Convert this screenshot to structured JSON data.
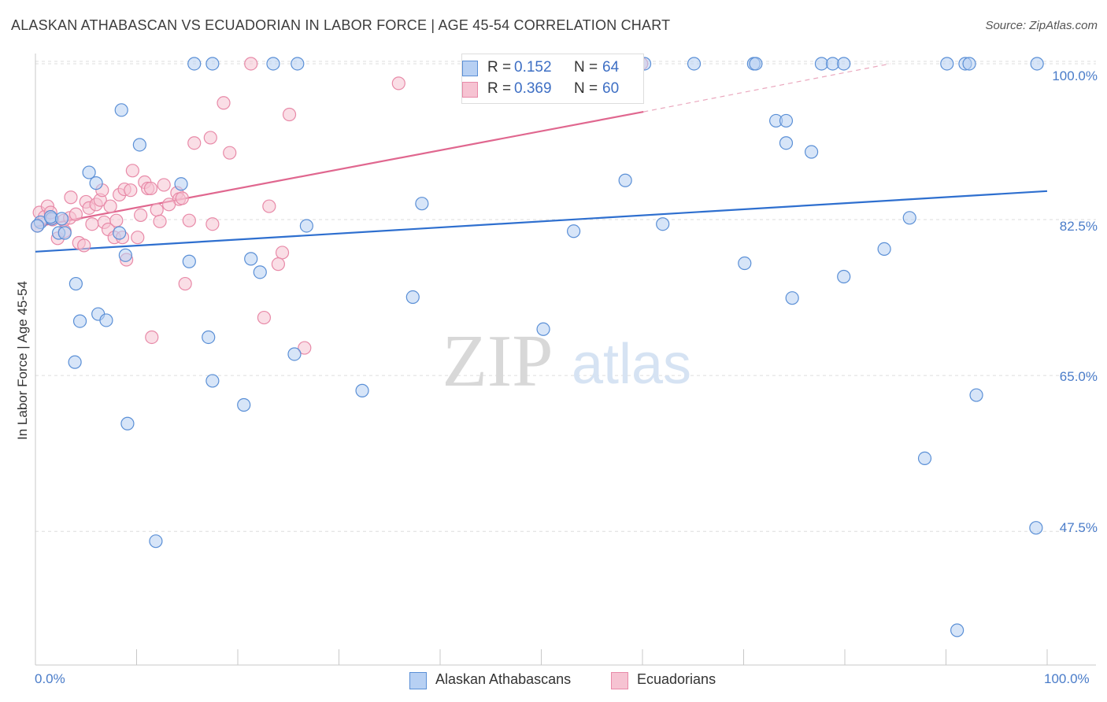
{
  "header": {
    "title": "ALASKAN ATHABASCAN VS ECUADORIAN IN LABOR FORCE | AGE 45-54 CORRELATION CHART",
    "source": "Source: ZipAtlas.com"
  },
  "watermark": {
    "zip": "ZIP",
    "atlas": "atlas"
  },
  "legend": {
    "rows": [
      {
        "r_key": "R =",
        "r_value": "0.152",
        "n_key": "N =",
        "n_value": "64"
      },
      {
        "r_key": "R =",
        "r_value": "0.369",
        "n_key": "N =",
        "n_value": "60"
      }
    ]
  },
  "bottom_legend": {
    "series1": "Alaskan Athabascans",
    "series2": "Ecuadorians"
  },
  "colors": {
    "blue_fill": "#b7d0f3",
    "blue_stroke": "#5a8fd6",
    "blue_line": "#2e6fcf",
    "pink_fill": "#f6c3d2",
    "pink_stroke": "#e88aa8",
    "pink_line": "#e0678f",
    "grid": "#dddddd",
    "tick_text": "#4a7cc9"
  },
  "chart_data": {
    "type": "scatter",
    "title": "ALASKAN ATHABASCAN VS ECUADORIAN IN LABOR FORCE | AGE 45-54 CORRELATION CHART",
    "xlabel": "",
    "ylabel": "In Labor Force | Age 45-54",
    "xlim": [
      0,
      100
    ],
    "ylim": [
      32.5,
      101.5
    ],
    "x_tick_labels": [
      "0.0%",
      "100.0%"
    ],
    "y_ticks": [
      47.5,
      65.0,
      82.5,
      100.0
    ],
    "y_tick_labels": [
      "47.5%",
      "65.0%",
      "82.5%",
      "100.0%"
    ],
    "grid": true,
    "series": [
      {
        "name": "Alaskan Athabascans",
        "r": 0.152,
        "n": 64,
        "trend": {
          "x": [
            0,
            100
          ],
          "y": [
            78.9,
            85.7
          ]
        },
        "points": [
          [
            0.5,
            82.2
          ],
          [
            1.6,
            82.6
          ],
          [
            1.5,
            82.8
          ],
          [
            2.3,
            81.0
          ],
          [
            2.9,
            81.0
          ],
          [
            4.0,
            75.3
          ],
          [
            5.3,
            87.8
          ],
          [
            6.0,
            86.6
          ],
          [
            4.4,
            71.1
          ],
          [
            6.2,
            71.9
          ],
          [
            7.0,
            71.2
          ],
          [
            3.9,
            66.5
          ],
          [
            8.3,
            81.0
          ],
          [
            8.9,
            78.5
          ],
          [
            9.1,
            59.6
          ],
          [
            8.5,
            94.8
          ],
          [
            10.3,
            90.9
          ],
          [
            11.9,
            46.4
          ],
          [
            14.4,
            86.5
          ],
          [
            15.2,
            77.8
          ],
          [
            15.7,
            100.0
          ],
          [
            17.5,
            100.0
          ],
          [
            17.1,
            69.3
          ],
          [
            17.5,
            64.4
          ],
          [
            20.6,
            61.7
          ],
          [
            21.3,
            78.1
          ],
          [
            22.2,
            76.6
          ],
          [
            23.5,
            100.0
          ],
          [
            25.9,
            100.0
          ],
          [
            25.6,
            67.4
          ],
          [
            26.8,
            81.8
          ],
          [
            32.3,
            63.3
          ],
          [
            37.3,
            73.8
          ],
          [
            38.2,
            84.3
          ],
          [
            50.2,
            70.2
          ],
          [
            53.2,
            81.2
          ],
          [
            58.3,
            86.9
          ],
          [
            60.2,
            100.0
          ],
          [
            62.0,
            82.0
          ],
          [
            65.1,
            100.0
          ],
          [
            70.1,
            77.6
          ],
          [
            71.0,
            100.0
          ],
          [
            71.2,
            100.0
          ],
          [
            73.2,
            93.6
          ],
          [
            74.2,
            93.6
          ],
          [
            74.2,
            91.1
          ],
          [
            74.8,
            73.7
          ],
          [
            76.7,
            90.1
          ],
          [
            77.7,
            100.0
          ],
          [
            78.8,
            100.0
          ],
          [
            79.9,
            100.0
          ],
          [
            79.9,
            76.1
          ],
          [
            83.9,
            79.2
          ],
          [
            86.4,
            82.7
          ],
          [
            87.9,
            55.7
          ],
          [
            90.1,
            100.0
          ],
          [
            91.9,
            100.0
          ],
          [
            92.3,
            100.0
          ],
          [
            91.1,
            36.4
          ],
          [
            93.0,
            62.8
          ],
          [
            99.0,
            100.0
          ],
          [
            98.9,
            47.9
          ],
          [
            0.2,
            81.8
          ],
          [
            2.6,
            82.6
          ]
        ]
      },
      {
        "name": "Ecuadorians",
        "r": 0.369,
        "n": 60,
        "trend": {
          "x": [
            0,
            60.1
          ],
          "y": [
            81.7,
            94.6
          ]
        },
        "trend_dashed": {
          "x": [
            60.1,
            84.5
          ],
          "y": [
            94.6,
            100.0
          ]
        },
        "points": [
          [
            0.2,
            81.8
          ],
          [
            0.4,
            83.3
          ],
          [
            0.9,
            82.8
          ],
          [
            1.2,
            84.0
          ],
          [
            1.7,
            82.5
          ],
          [
            2.2,
            80.4
          ],
          [
            2.8,
            82.4
          ],
          [
            3.4,
            82.7
          ],
          [
            3.5,
            85.0
          ],
          [
            4.0,
            83.1
          ],
          [
            4.3,
            79.9
          ],
          [
            4.8,
            79.6
          ],
          [
            5.0,
            84.5
          ],
          [
            5.3,
            83.8
          ],
          [
            5.6,
            82.0
          ],
          [
            6.0,
            84.2
          ],
          [
            6.4,
            84.7
          ],
          [
            6.6,
            85.8
          ],
          [
            6.8,
            82.2
          ],
          [
            7.2,
            81.4
          ],
          [
            7.4,
            84.0
          ],
          [
            7.8,
            80.5
          ],
          [
            8.0,
            82.4
          ],
          [
            8.3,
            85.3
          ],
          [
            8.6,
            80.5
          ],
          [
            8.8,
            85.9
          ],
          [
            9.0,
            78.0
          ],
          [
            9.4,
            85.8
          ],
          [
            9.6,
            88.0
          ],
          [
            10.1,
            80.5
          ],
          [
            10.4,
            83.0
          ],
          [
            10.8,
            86.7
          ],
          [
            11.1,
            86.0
          ],
          [
            11.4,
            86.0
          ],
          [
            11.5,
            69.3
          ],
          [
            12.0,
            83.6
          ],
          [
            12.3,
            82.3
          ],
          [
            12.7,
            86.4
          ],
          [
            14.0,
            85.5
          ],
          [
            14.2,
            84.8
          ],
          [
            14.5,
            84.9
          ],
          [
            13.2,
            84.2
          ],
          [
            14.8,
            75.3
          ],
          [
            15.2,
            82.4
          ],
          [
            15.7,
            91.1
          ],
          [
            17.3,
            91.7
          ],
          [
            17.5,
            82.0
          ],
          [
            18.6,
            95.6
          ],
          [
            19.2,
            90.0
          ],
          [
            21.3,
            100.0
          ],
          [
            22.6,
            71.5
          ],
          [
            23.1,
            84.0
          ],
          [
            24.4,
            78.8
          ],
          [
            24.0,
            77.5
          ],
          [
            25.1,
            94.3
          ],
          [
            26.6,
            68.1
          ],
          [
            35.9,
            97.8
          ],
          [
            59.9,
            100.0
          ],
          [
            1.5,
            83.3
          ],
          [
            2.9,
            81.2
          ]
        ]
      }
    ]
  }
}
